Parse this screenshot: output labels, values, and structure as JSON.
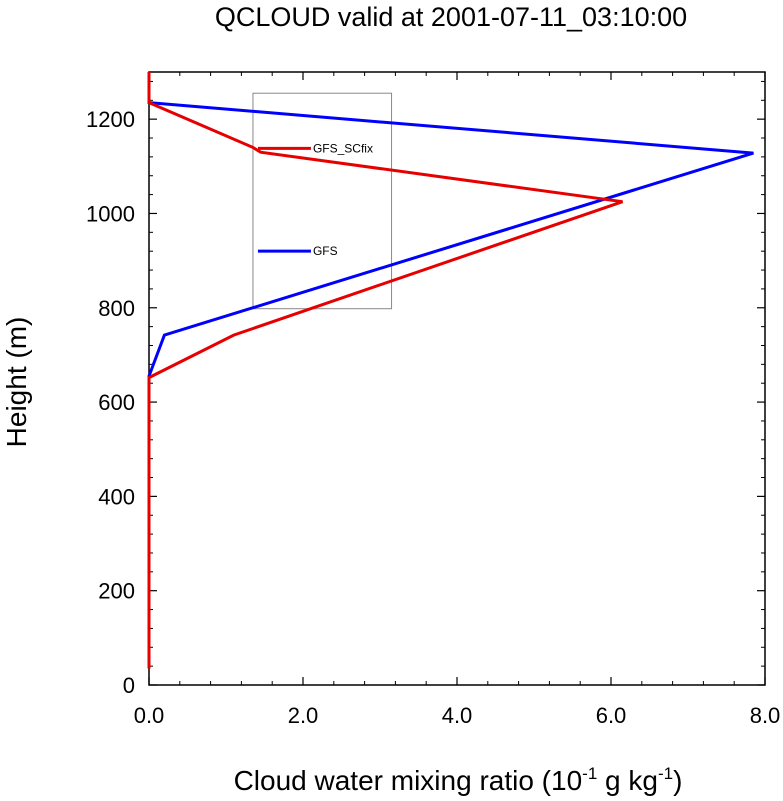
{
  "chart_data": {
    "type": "line",
    "title": "QCLOUD valid at 2001-07-11_03:10:00",
    "xlabel": {
      "main": "Cloud water mixing ratio (10",
      "exp1": "-1",
      "mid": " g kg",
      "exp2": "-1",
      "end": ")"
    },
    "ylabel": "Height (m)",
    "xlim": [
      0,
      8
    ],
    "ylim": [
      0,
      1300
    ],
    "xticks": [
      0,
      2,
      4,
      6,
      8
    ],
    "xtick_labels": [
      "0.0",
      "2.0",
      "4.0",
      "6.0",
      "8.0"
    ],
    "yticks": [
      0,
      200,
      400,
      600,
      800,
      1000,
      1200
    ],
    "ytick_labels": [
      "0",
      "200",
      "400",
      "600",
      "800",
      "1000",
      "1200"
    ],
    "grid": false,
    "legend_position": "top-center",
    "series": [
      {
        "name": "GFS",
        "color": "#0000ff",
        "points": [
          [
            0,
            35
          ],
          [
            0,
            655
          ],
          [
            0.2,
            742
          ],
          [
            7.85,
            1128
          ],
          [
            0,
            1235
          ],
          [
            0,
            1300
          ]
        ]
      },
      {
        "name": "GFS_SCfix",
        "color": "#e60000",
        "points": [
          [
            0,
            35
          ],
          [
            0,
            652
          ],
          [
            1.1,
            742
          ],
          [
            6.15,
            1025
          ],
          [
            1.45,
            1130
          ],
          [
            1.35,
            1140
          ],
          [
            0,
            1235
          ],
          [
            0,
            1300
          ]
        ]
      }
    ],
    "legend": [
      {
        "label": "GFS_SCfix",
        "color": "#e60000"
      },
      {
        "label": "GFS",
        "color": "#0000ff"
      }
    ]
  }
}
